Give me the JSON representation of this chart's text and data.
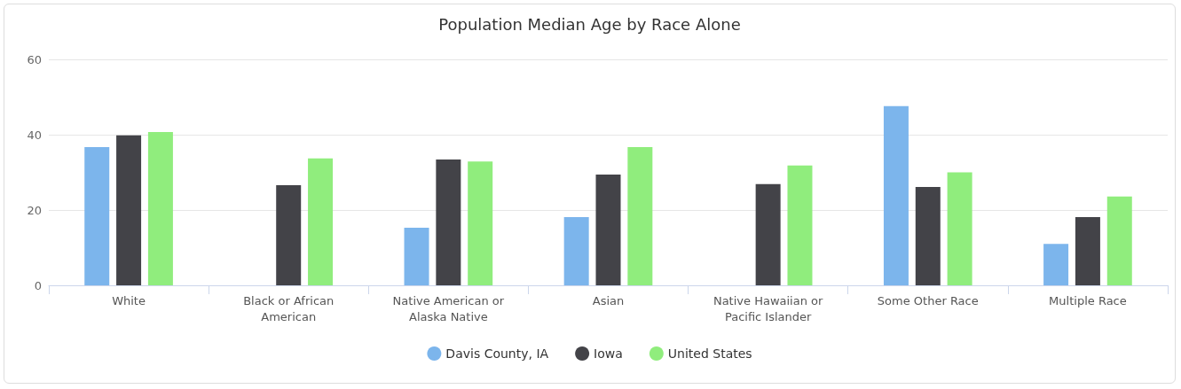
{
  "chart_data": {
    "type": "bar",
    "title": "Population Median Age by Race Alone",
    "categories": [
      "White",
      "Black or African American",
      "Native American or Alaska Native",
      "Asian",
      "Native Hawaiian or Pacific Islander",
      "Some Other Race",
      "Multiple Race"
    ],
    "series": [
      {
        "name": "Davis County, IA",
        "color": "#7cb5ec",
        "values": [
          36.7,
          null,
          15.3,
          18.1,
          null,
          47.6,
          11.0
        ]
      },
      {
        "name": "Iowa",
        "color": "#434348",
        "values": [
          39.8,
          26.6,
          33.4,
          29.4,
          26.9,
          26.1,
          18.1
        ]
      },
      {
        "name": "United States",
        "color": "#90ed7d",
        "values": [
          40.7,
          33.7,
          32.9,
          36.7,
          31.8,
          30.0,
          23.6
        ]
      }
    ],
    "ylim": [
      0,
      60
    ],
    "yticks": [
      0,
      20,
      40,
      60
    ],
    "grid": "y",
    "legend": "bottom"
  }
}
